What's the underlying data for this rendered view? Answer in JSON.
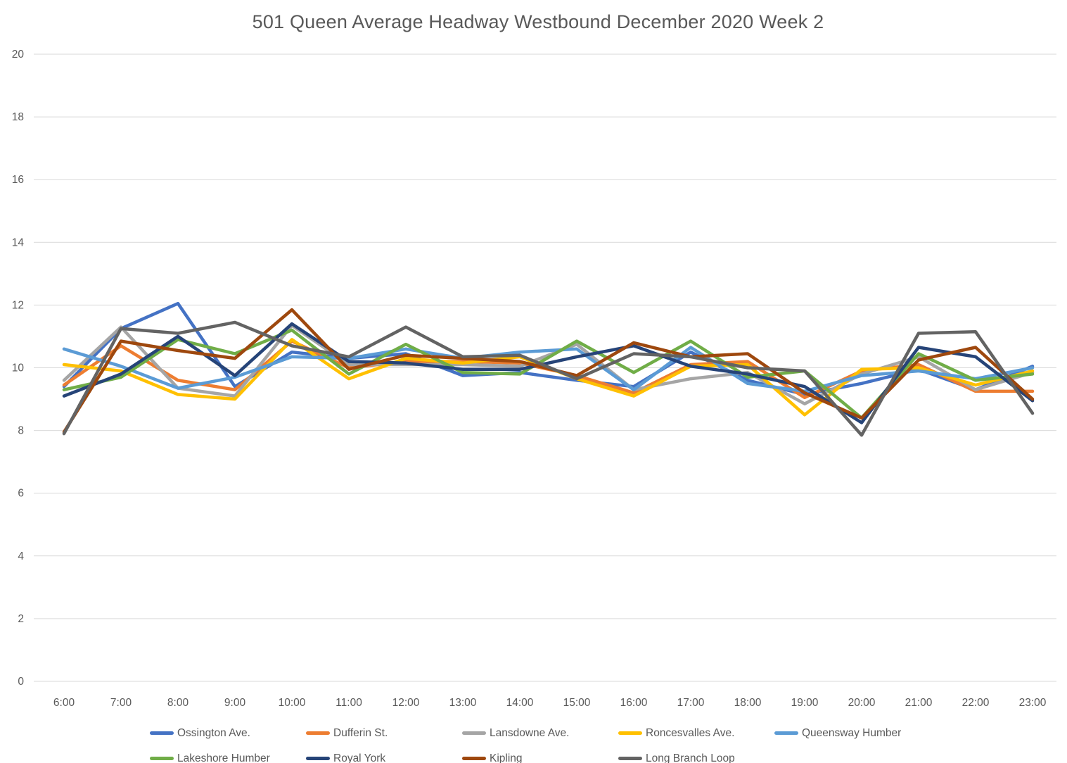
{
  "chart_data": {
    "type": "line",
    "title": "501 Queen  Average Headway Westbound December 2020 Week 2",
    "xlabel": "",
    "ylabel": "",
    "x_categories": [
      "6:00",
      "7:00",
      "8:00",
      "9:00",
      "10:00",
      "11:00",
      "12:00",
      "13:00",
      "14:00",
      "15:00",
      "16:00",
      "17:00",
      "18:00",
      "19:00",
      "20:00",
      "21:00",
      "22:00",
      "23:00"
    ],
    "ylim": [
      0,
      20
    ],
    "ytick_step": 2,
    "ytick_labels": [
      "0",
      "2",
      "4",
      "6",
      "8",
      "10",
      "12",
      "14",
      "16",
      "18",
      "20"
    ],
    "grid": "horizontal",
    "legend_position": "bottom",
    "axis_text_color": "#595959",
    "gridline_color": "#D9D9D9",
    "series": [
      {
        "name": "Ossington Ave.",
        "color": "#4472C4",
        "values": [
          9.4,
          11.25,
          12.05,
          9.4,
          10.5,
          10.3,
          10.45,
          9.75,
          9.85,
          9.6,
          9.4,
          10.5,
          9.6,
          9.15,
          9.5,
          9.95,
          9.3,
          10.05
        ]
      },
      {
        "name": "Dufferin St.",
        "color": "#ED7D31",
        "values": [
          9.45,
          10.7,
          9.6,
          9.3,
          10.85,
          10.0,
          10.2,
          10.2,
          10.15,
          9.75,
          9.2,
          10.1,
          10.2,
          9.05,
          9.9,
          10.1,
          9.25,
          9.25
        ]
      },
      {
        "name": "Lansdowne Ave.",
        "color": "#A5A5A5",
        "values": [
          9.6,
          11.3,
          9.35,
          9.1,
          11.35,
          10.1,
          10.1,
          10.1,
          10.05,
          10.75,
          9.3,
          9.65,
          9.85,
          8.85,
          9.8,
          10.35,
          9.3,
          9.85
        ]
      },
      {
        "name": "Roncesvalles Ave.",
        "color": "#FFC000",
        "values": [
          10.1,
          9.9,
          9.15,
          9.0,
          10.9,
          9.65,
          10.3,
          10.15,
          10.35,
          9.65,
          9.1,
          10.05,
          10.1,
          8.5,
          9.95,
          10.0,
          9.45,
          9.9
        ]
      },
      {
        "name": "Queensway Humber",
        "color": "#5B9BD5",
        "values": [
          10.6,
          10.05,
          9.35,
          9.7,
          10.35,
          10.3,
          10.6,
          10.3,
          10.5,
          10.6,
          9.3,
          10.65,
          9.5,
          9.25,
          9.75,
          9.9,
          9.65,
          10.0
        ]
      },
      {
        "name": "Lakeshore Humber",
        "color": "#70AD47",
        "values": [
          9.3,
          9.7,
          10.9,
          10.45,
          11.2,
          9.8,
          10.75,
          9.85,
          9.8,
          10.85,
          9.85,
          10.85,
          9.7,
          9.9,
          8.4,
          10.45,
          9.6,
          9.8
        ]
      },
      {
        "name": "Royal York",
        "color": "#264478",
        "values": [
          9.1,
          9.8,
          11.0,
          9.75,
          11.4,
          10.2,
          10.15,
          9.95,
          9.95,
          10.35,
          10.7,
          10.05,
          9.8,
          9.4,
          8.25,
          10.65,
          10.35,
          8.95
        ]
      },
      {
        "name": "Kipling",
        "color": "#9E480E",
        "values": [
          7.95,
          10.85,
          10.55,
          10.3,
          11.85,
          9.95,
          10.4,
          10.3,
          10.2,
          9.75,
          10.8,
          10.35,
          10.45,
          9.2,
          8.4,
          10.25,
          10.65,
          9.0
        ]
      },
      {
        "name": "Long Branch Loop",
        "color": "#636363",
        "values": [
          7.9,
          11.25,
          11.1,
          11.45,
          10.7,
          10.35,
          11.3,
          10.35,
          10.4,
          9.65,
          10.45,
          10.35,
          10.0,
          9.9,
          7.85,
          11.1,
          11.15,
          8.55
        ]
      }
    ]
  }
}
